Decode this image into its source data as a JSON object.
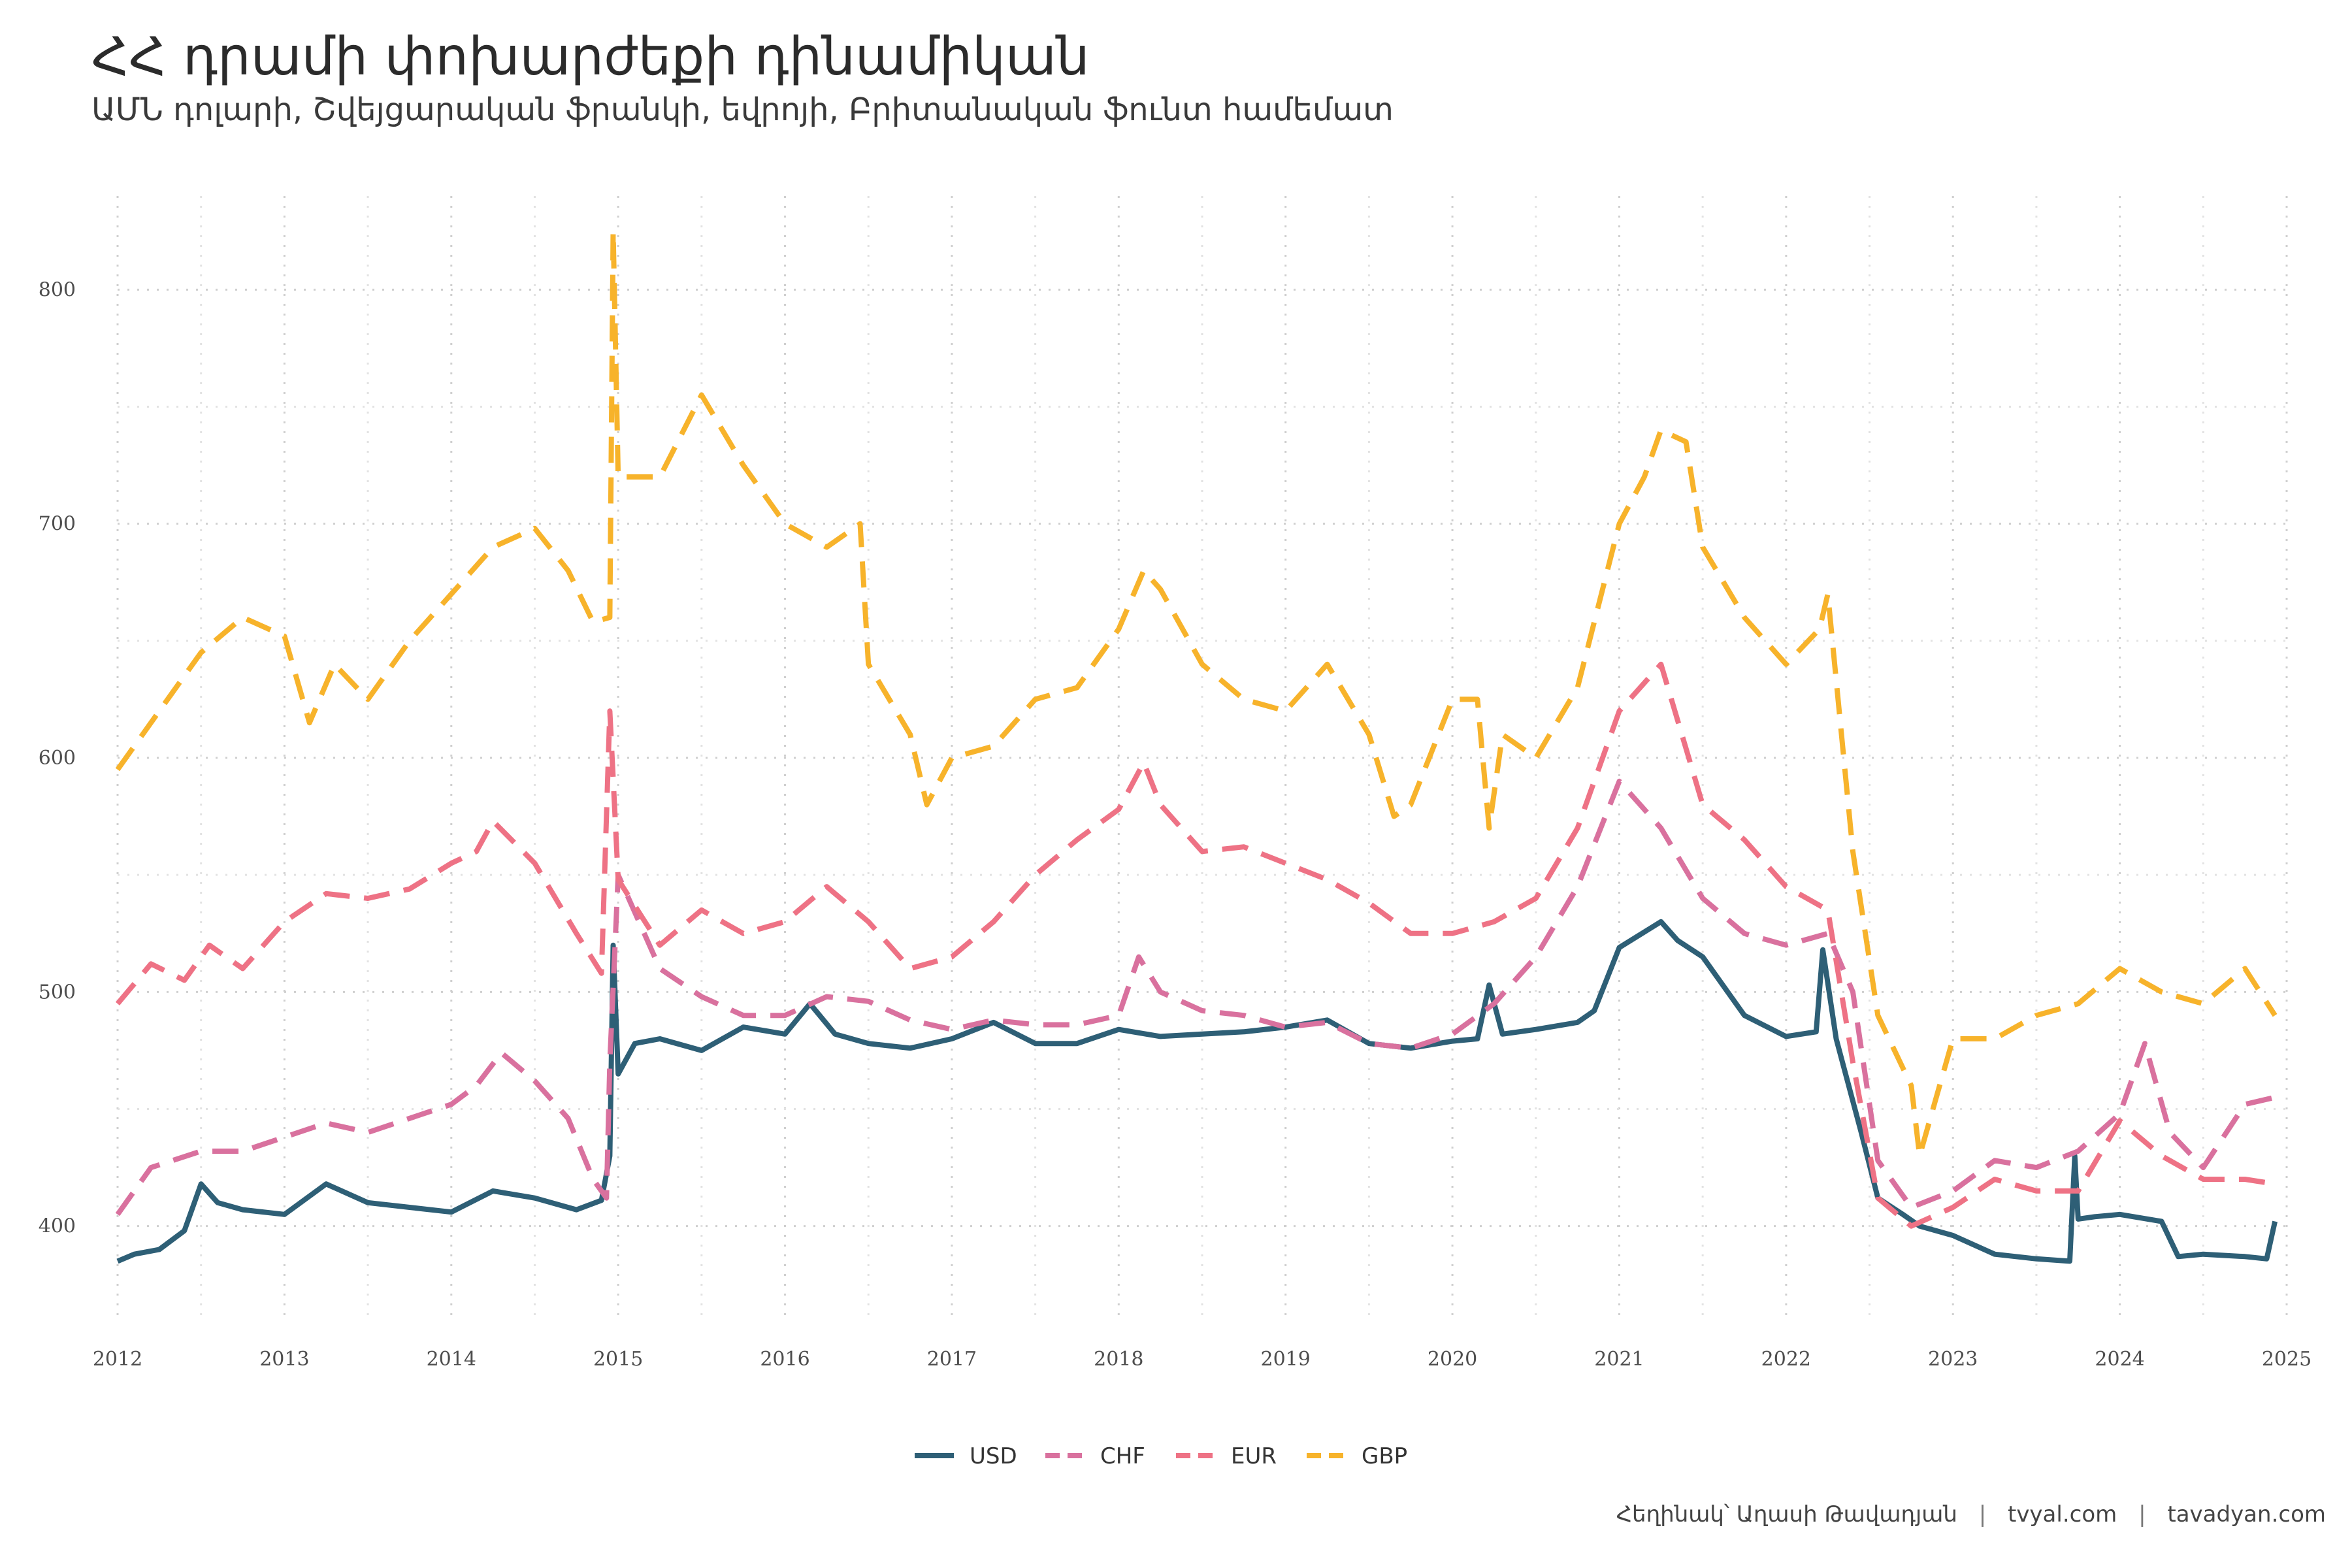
{
  "title": "ՀՀ դրամի փոխարժեքի դինամիկան",
  "subtitle": "ԱՄՆ դոլարի, Շվեյցարական ֆրանկի, եվրոյի, Բրիտանական ֆունտ համեմատ",
  "caption": {
    "author": "Հեղինակ՝ Աղասի Թավադյան",
    "site1": "tvyal.com",
    "site2": "tavadyan.com"
  },
  "chart_data": {
    "type": "line",
    "xlabel": "",
    "ylabel": "",
    "xlim": [
      2012.0,
      2025.0
    ],
    "ylim": [
      360,
      840
    ],
    "x_ticks": [
      2012,
      2013,
      2014,
      2015,
      2016,
      2017,
      2018,
      2019,
      2020,
      2021,
      2022,
      2023,
      2024,
      2025
    ],
    "y_ticks": [
      400,
      500,
      600,
      700,
      800
    ],
    "grid": true,
    "legend_position": "bottom",
    "series": [
      {
        "name": "USD",
        "color": "#2e5f76",
        "dash": "solid",
        "x": [
          2012.0,
          2012.1,
          2012.25,
          2012.4,
          2012.5,
          2012.6,
          2012.75,
          2013.0,
          2013.25,
          2013.5,
          2013.75,
          2014.0,
          2014.25,
          2014.5,
          2014.75,
          2014.9,
          2014.95,
          2014.97,
          2015.0,
          2015.1,
          2015.25,
          2015.5,
          2015.75,
          2016.0,
          2016.15,
          2016.3,
          2016.5,
          2016.75,
          2017.0,
          2017.25,
          2017.5,
          2017.75,
          2018.0,
          2018.25,
          2018.5,
          2018.75,
          2019.0,
          2019.25,
          2019.5,
          2019.75,
          2020.0,
          2020.15,
          2020.22,
          2020.3,
          2020.5,
          2020.75,
          2020.85,
          2021.0,
          2021.25,
          2021.35,
          2021.5,
          2021.75,
          2022.0,
          2022.18,
          2022.22,
          2022.3,
          2022.45,
          2022.55,
          2022.7,
          2022.8,
          2023.0,
          2023.25,
          2023.5,
          2023.7,
          2023.73,
          2023.75,
          2023.85,
          2024.0,
          2024.25,
          2024.35,
          2024.5,
          2024.75,
          2024.88,
          2024.93
        ],
        "values": [
          385,
          388,
          390,
          398,
          418,
          410,
          407,
          405,
          418,
          410,
          408,
          406,
          415,
          412,
          407,
          411,
          430,
          520,
          465,
          478,
          480,
          475,
          485,
          482,
          495,
          482,
          478,
          476,
          480,
          487,
          478,
          478,
          484,
          481,
          482,
          483,
          485,
          488,
          478,
          476,
          479,
          480,
          503,
          482,
          484,
          487,
          492,
          519,
          530,
          522,
          515,
          490,
          481,
          483,
          518,
          480,
          440,
          412,
          405,
          400,
          396,
          388,
          386,
          385,
          430,
          403,
          404,
          405,
          402,
          387,
          388,
          387,
          386,
          402
        ]
      },
      {
        "name": "CHF",
        "color": "#d9719e",
        "dash": "dashed",
        "x": [
          2012.0,
          2012.2,
          2012.5,
          2012.75,
          2013.0,
          2013.25,
          2013.5,
          2013.75,
          2014.0,
          2014.15,
          2014.3,
          2014.5,
          2014.7,
          2014.85,
          2014.93,
          2014.95,
          2015.0,
          2015.25,
          2015.5,
          2015.75,
          2016.0,
          2016.25,
          2016.5,
          2016.75,
          2017.0,
          2017.25,
          2017.5,
          2017.75,
          2018.0,
          2018.12,
          2018.25,
          2018.5,
          2018.75,
          2019.0,
          2019.25,
          2019.5,
          2019.75,
          2020.0,
          2020.25,
          2020.5,
          2020.75,
          2021.0,
          2021.25,
          2021.5,
          2021.75,
          2022.0,
          2022.25,
          2022.4,
          2022.55,
          2022.75,
          2023.0,
          2023.25,
          2023.5,
          2023.75,
          2024.0,
          2024.15,
          2024.3,
          2024.5,
          2024.75,
          2024.93
        ],
        "values": [
          405,
          425,
          432,
          432,
          438,
          444,
          440,
          446,
          452,
          460,
          474,
          462,
          446,
          420,
          412,
          470,
          550,
          510,
          498,
          490,
          490,
          498,
          496,
          488,
          484,
          488,
          486,
          486,
          490,
          515,
          500,
          492,
          490,
          485,
          487,
          478,
          476,
          482,
          495,
          515,
          545,
          590,
          570,
          540,
          525,
          520,
          525,
          500,
          428,
          408,
          415,
          428,
          425,
          432,
          448,
          478,
          440,
          425,
          452,
          455
        ]
      },
      {
        "name": "EUR",
        "color": "#ee7285",
        "dash": "dashed",
        "x": [
          2012.0,
          2012.2,
          2012.4,
          2012.55,
          2012.75,
          2013.0,
          2013.25,
          2013.5,
          2013.75,
          2014.0,
          2014.15,
          2014.25,
          2014.5,
          2014.75,
          2014.9,
          2014.95,
          2015.0,
          2015.25,
          2015.5,
          2015.75,
          2016.0,
          2016.25,
          2016.5,
          2016.75,
          2017.0,
          2017.25,
          2017.5,
          2017.75,
          2018.0,
          2018.15,
          2018.25,
          2018.5,
          2018.75,
          2019.0,
          2019.25,
          2019.5,
          2019.75,
          2020.0,
          2020.25,
          2020.5,
          2020.75,
          2021.0,
          2021.25,
          2021.5,
          2021.75,
          2022.0,
          2022.25,
          2022.4,
          2022.55,
          2022.75,
          2023.0,
          2023.25,
          2023.5,
          2023.75,
          2024.0,
          2024.25,
          2024.5,
          2024.75,
          2024.93
        ],
        "values": [
          495,
          512,
          505,
          520,
          510,
          530,
          542,
          540,
          544,
          555,
          560,
          573,
          555,
          525,
          508,
          620,
          548,
          520,
          535,
          525,
          530,
          545,
          530,
          510,
          515,
          530,
          550,
          565,
          578,
          598,
          580,
          560,
          562,
          555,
          548,
          538,
          525,
          525,
          530,
          540,
          570,
          620,
          640,
          580,
          565,
          545,
          535,
          470,
          412,
          400,
          408,
          420,
          415,
          415,
          445,
          430,
          420,
          420,
          418
        ]
      },
      {
        "name": "GBP",
        "color": "#f7b32b",
        "dash": "dashed",
        "x": [
          2012.0,
          2012.25,
          2012.5,
          2012.75,
          2013.0,
          2013.15,
          2013.3,
          2013.5,
          2013.75,
          2014.0,
          2014.25,
          2014.5,
          2014.7,
          2014.85,
          2014.95,
          2014.97,
          2015.0,
          2015.25,
          2015.5,
          2015.75,
          2016.0,
          2016.25,
          2016.45,
          2016.5,
          2016.75,
          2016.85,
          2017.0,
          2017.25,
          2017.5,
          2017.75,
          2018.0,
          2018.15,
          2018.25,
          2018.5,
          2018.75,
          2019.0,
          2019.25,
          2019.5,
          2019.65,
          2019.75,
          2020.0,
          2020.15,
          2020.22,
          2020.3,
          2020.5,
          2020.75,
          2021.0,
          2021.15,
          2021.25,
          2021.4,
          2021.5,
          2021.75,
          2022.0,
          2022.2,
          2022.25,
          2022.4,
          2022.55,
          2022.75,
          2022.8,
          2023.0,
          2023.25,
          2023.5,
          2023.75,
          2024.0,
          2024.25,
          2024.5,
          2024.75,
          2024.93
        ],
        "values": [
          595,
          620,
          645,
          660,
          652,
          615,
          640,
          625,
          650,
          670,
          690,
          698,
          680,
          658,
          660,
          825,
          720,
          720,
          755,
          725,
          700,
          690,
          700,
          640,
          610,
          580,
          600,
          605,
          625,
          630,
          655,
          680,
          672,
          640,
          625,
          620,
          640,
          610,
          575,
          580,
          625,
          625,
          570,
          610,
          600,
          630,
          700,
          720,
          740,
          735,
          690,
          660,
          640,
          655,
          670,
          560,
          490,
          460,
          430,
          480,
          480,
          490,
          495,
          510,
          500,
          495,
          510,
          490
        ]
      }
    ]
  }
}
